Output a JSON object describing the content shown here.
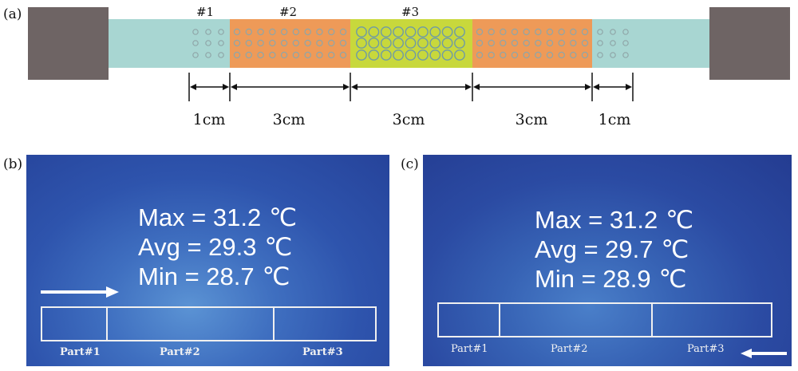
{
  "panel_a": {
    "label": "(a)",
    "section_labels": [
      "#1",
      "#2",
      "#3"
    ],
    "dimension_labels": [
      "1cm",
      "3cm",
      "3cm",
      "3cm",
      "1cm"
    ],
    "colors": {
      "clamp": "#6e6464",
      "strip": "#a8d6d2",
      "part2_fill": "#ee9a58",
      "part3_fill": "#c8d83c",
      "hole_outline": "#8fa6a8",
      "hole_outline_part3": "#6e9aa6"
    }
  },
  "panel_b": {
    "label": "(b)",
    "max": "Max = 31.2",
    "avg": "Avg = 29.3",
    "min": "Min = 28.7",
    "unit": "℃",
    "parts": [
      "Part#1",
      "Part#2",
      "Part#3"
    ],
    "arrow_direction": "right"
  },
  "panel_c": {
    "label": "(c)",
    "max": "Max = 31.2",
    "avg": "Avg = 29.7",
    "min": "Min = 28.9",
    "unit": "℃",
    "parts": [
      "Part#1",
      "Part#2",
      "Part#3"
    ],
    "arrow_direction": "left"
  }
}
